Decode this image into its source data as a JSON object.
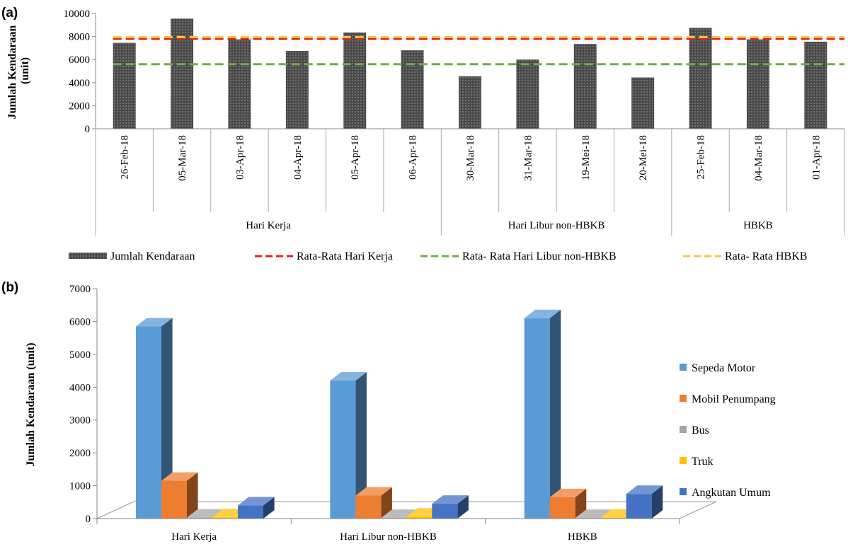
{
  "chart_data": [
    {
      "panel": "(a)",
      "type": "bar",
      "ylabel": "Jumlah Kendaraan (unit)",
      "ylim": [
        0,
        10000
      ],
      "yticks": [
        0,
        2000,
        4000,
        6000,
        8000,
        10000
      ],
      "categories": [
        "26-Feb-18",
        "05-Mar-18",
        "03-Apr-18",
        "04-Apr-18",
        "05-Apr-18",
        "06-Apr-18",
        "30-Mar-18",
        "31-Mar-18",
        "19-Mei-18",
        "20-Mei-18",
        "25-Feb-18",
        "04-Mar-18",
        "01-Apr-18"
      ],
      "groups": [
        {
          "name": "Hari Kerja",
          "count": 6
        },
        {
          "name": "Hari Libur non-HBKB",
          "count": 4
        },
        {
          "name": "HBKB",
          "count": 3
        }
      ],
      "series": [
        {
          "name": "Jumlah Kendaraan",
          "values": [
            7450,
            9550,
            7750,
            6750,
            8350,
            6800,
            4550,
            6000,
            7350,
            4450,
            8750,
            7750,
            7550
          ],
          "color": "#4a4a4a"
        }
      ],
      "reference_lines": [
        {
          "name": "Rata-Rata Hari Kerja",
          "value": 7800,
          "color": "#e8201a"
        },
        {
          "name": "Rata- Rata Hari Libur non-HBKB",
          "value": 5600,
          "color": "#6fad47"
        },
        {
          "name": "Rata- Rata HBKB",
          "value": 7950,
          "color": "#f2c84b"
        }
      ],
      "grid": false,
      "legend": "bottom"
    },
    {
      "panel": "(b)",
      "type": "bar",
      "style": "3d-clustered",
      "ylabel": "Jumlah Kendaraan (unit)",
      "ylim": [
        0,
        7000
      ],
      "yticks": [
        0,
        1000,
        2000,
        3000,
        4000,
        5000,
        6000,
        7000
      ],
      "categories": [
        "Hari Kerja",
        "Hari Libur non-HBKB",
        "HBKB"
      ],
      "series": [
        {
          "name": "Sepeda Motor",
          "values": [
            5850,
            4200,
            6100
          ],
          "color": "#5b9bd5"
        },
        {
          "name": "Mobil Penumpang",
          "values": [
            1150,
            700,
            650
          ],
          "color": "#ed7d31"
        },
        {
          "name": "Bus",
          "values": [
            30,
            20,
            20
          ],
          "color": "#a5a5a5"
        },
        {
          "name": "Truk",
          "values": [
            40,
            60,
            30
          ],
          "color": "#ffc000"
        },
        {
          "name": "Angkutan Umum",
          "values": [
            400,
            450,
            750
          ],
          "color": "#4472c4"
        }
      ],
      "grid": false,
      "legend": "right"
    }
  ]
}
